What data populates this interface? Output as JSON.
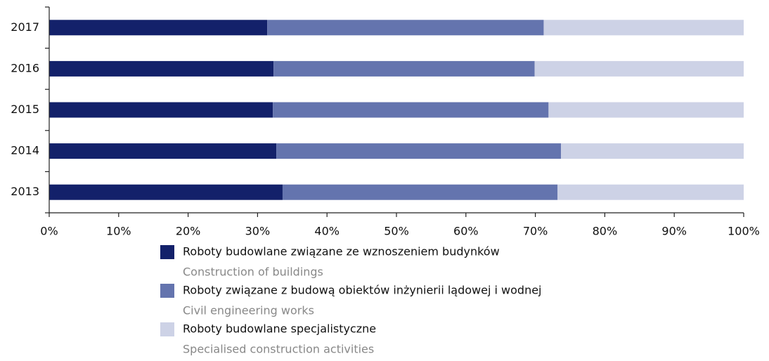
{
  "chart_data": {
    "type": "stacked-bar-horizontal",
    "categories": [
      "2017",
      "2016",
      "2015",
      "2014",
      "2013"
    ],
    "series": [
      {
        "name": "Roboty budowlane związane ze wznoszeniem budynków",
        "subtitle": "Construction of buildings",
        "color": "#13216a",
        "values": [
          31.4,
          32.3,
          32.2,
          32.7,
          33.6
        ]
      },
      {
        "name": "Roboty związane z budową obiektów inżynierii lądowej i wodnej",
        "subtitle": "Civil engineering works",
        "color": "#6474ae",
        "values": [
          39.8,
          37.6,
          39.7,
          41.0,
          39.6
        ]
      },
      {
        "name": "Roboty budowlane specjalistyczne",
        "subtitle": "Specialised construction activities",
        "color": "#cdd2e6",
        "values": [
          28.8,
          30.1,
          28.1,
          26.3,
          26.8
        ]
      }
    ],
    "xlim": [
      0,
      100
    ],
    "xticks": [
      {
        "value": 0,
        "label": "0%"
      },
      {
        "value": 10,
        "label": "10%"
      },
      {
        "value": 20,
        "label": "20%"
      },
      {
        "value": 30,
        "label": "30%"
      },
      {
        "value": 40,
        "label": "40%"
      },
      {
        "value": 50,
        "label": "50%"
      },
      {
        "value": 60,
        "label": "60%"
      },
      {
        "value": 70,
        "label": "70%"
      },
      {
        "value": 80,
        "label": "80%"
      },
      {
        "value": 90,
        "label": "90%"
      },
      {
        "value": 100,
        "label": "100%"
      }
    ],
    "grid": false
  }
}
